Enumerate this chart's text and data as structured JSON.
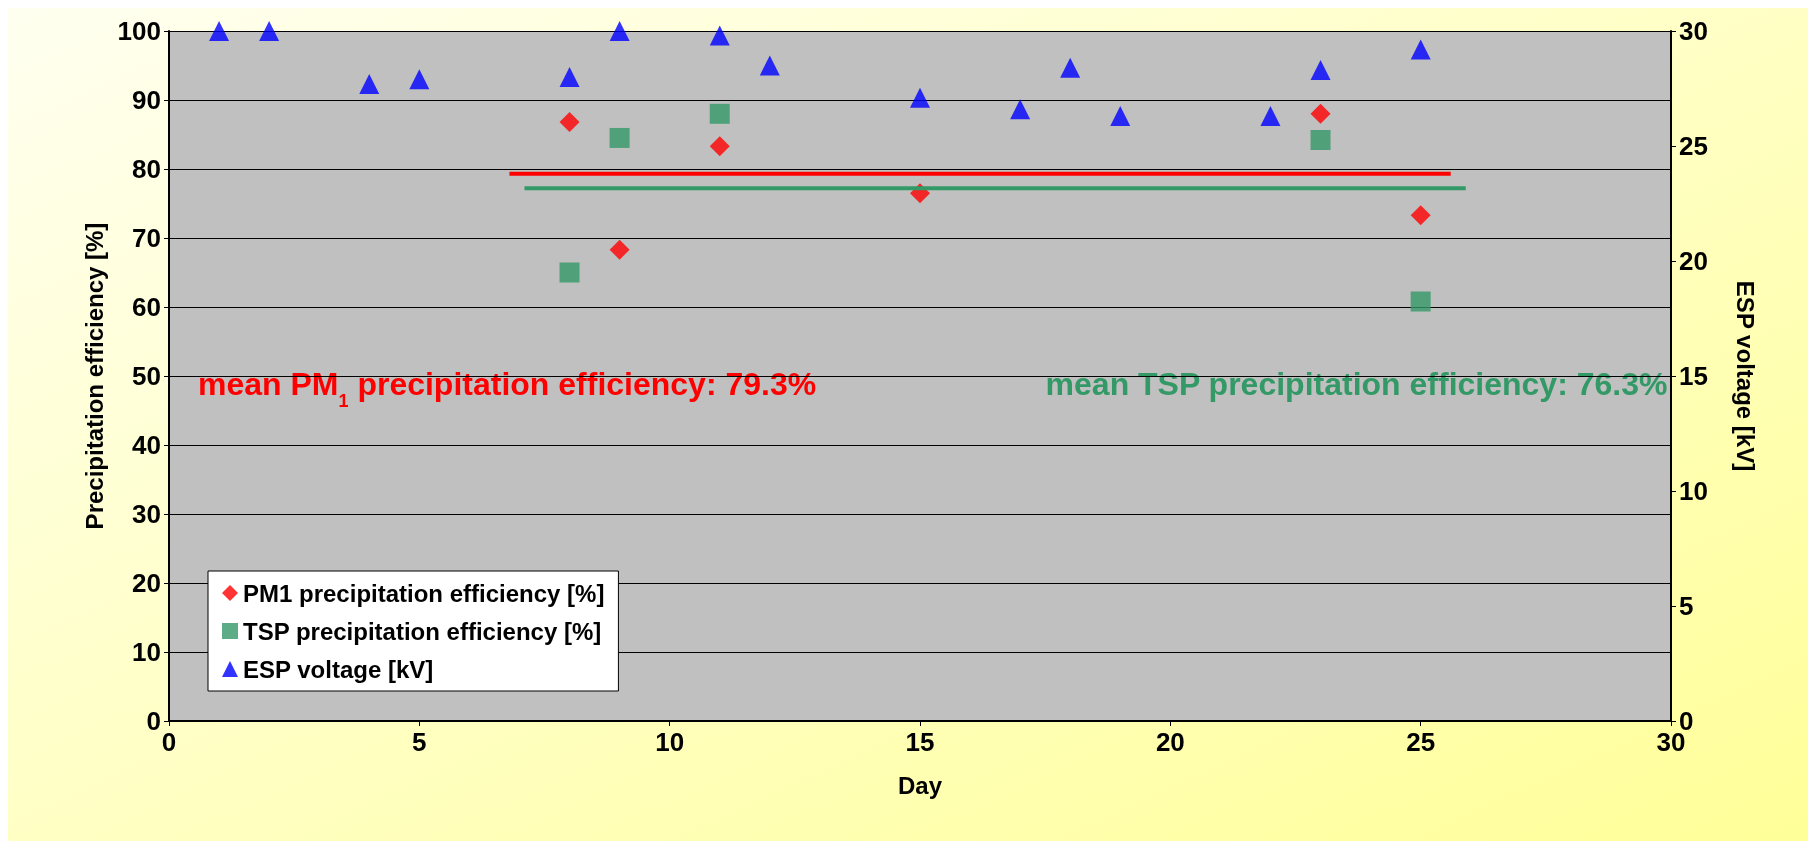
{
  "chart_data": {
    "type": "scatter",
    "xlabel": "Day",
    "ylabel": "Precipitation efficiency [%]",
    "y2label": "ESP voltage [kV]",
    "xlim": [
      0,
      30
    ],
    "xticks": [
      0,
      5,
      10,
      15,
      20,
      25,
      30
    ],
    "ylim": [
      0,
      100
    ],
    "yticks": [
      0,
      10,
      20,
      30,
      40,
      50,
      60,
      70,
      80,
      90,
      100
    ],
    "y2lim": [
      0,
      30
    ],
    "y2ticks": [
      0,
      5,
      10,
      15,
      20,
      25,
      30
    ],
    "grid": "y",
    "legend": "bottom left",
    "series": [
      {
        "name": "PM1 precipitation efficiency [%]",
        "color": "#ff0000",
        "marker": "diamond",
        "x": [
          8,
          9,
          11,
          15,
          23,
          25
        ],
        "values": [
          86.8,
          68.3,
          83.3,
          76.5,
          88,
          73.3
        ]
      },
      {
        "name": "TSP precipitation efficiency [%]",
        "color": "#339966",
        "marker": "square",
        "x": [
          8,
          9,
          11,
          23,
          25
        ],
        "values": [
          65,
          84.5,
          88,
          84.2,
          60.8
        ]
      },
      {
        "name": "ESP voltage [kV]",
        "color": "#0000ff",
        "marker": "triangle",
        "axis": "y2",
        "x": [
          1,
          2,
          4,
          5,
          8,
          9,
          11,
          12,
          15,
          17,
          18,
          19,
          22,
          23,
          25
        ],
        "values": [
          30,
          30,
          27.7,
          27.9,
          28,
          30,
          29.8,
          28.5,
          27.1,
          26.6,
          28.4,
          26.3,
          26.3,
          28.3,
          29.2
        ]
      },
      {
        "type": "line",
        "color": "#ff0000",
        "marker": "none",
        "x": [
          6.8,
          25.6
        ],
        "values": [
          79.3,
          79.3
        ]
      },
      {
        "type": "line",
        "color": "#339966",
        "marker": "none",
        "x": [
          7.1,
          25.9
        ],
        "values": [
          77.2,
          77.2
        ]
      }
    ],
    "annotations": [
      "mean PM$_{1}$ precipitation efficiency: 79.3%",
      "mean TSP precipitation efficiency: 76.3%"
    ]
  }
}
